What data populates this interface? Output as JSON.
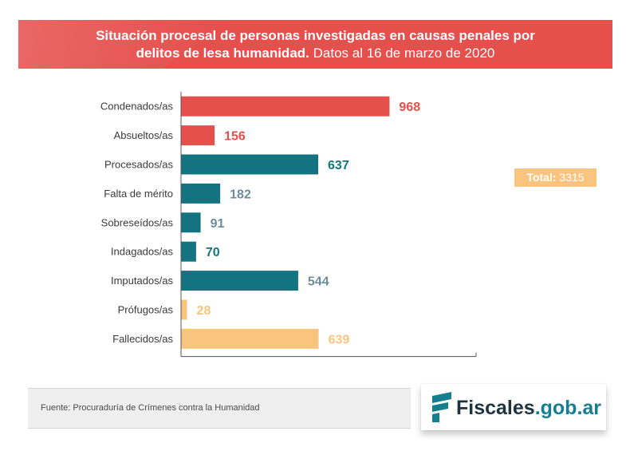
{
  "header": {
    "title_bold_1": "Situación procesal de personas investigadas en  causas penales por",
    "title_bold_2": "delitos de lesa humanidad.",
    "title_regular_2": " Datos al 16 de marzo de 2020"
  },
  "chart_data": {
    "type": "bar",
    "orientation": "horizontal",
    "categories": [
      "Condenados/as",
      "Absueltos/as",
      "Procesados/as",
      "Falta de mérito",
      "Sobreseídos/as",
      "Indagados/as",
      "Imputados/as",
      "Prófugos/as",
      "Fallecidos/as"
    ],
    "values": [
      968,
      156,
      637,
      182,
      91,
      70,
      544,
      28,
      639
    ],
    "bar_colors": [
      "#e54f4c",
      "#e54f4c",
      "#137380",
      "#137380",
      "#137380",
      "#137380",
      "#137380",
      "#f9c47e",
      "#f9c47e"
    ],
    "label_colors": [
      "#e54f4c",
      "#e54f4c",
      "#137380",
      "#6b8d9c",
      "#6b8d9c",
      "#137380",
      "#6b8d9c",
      "#f9c47e",
      "#f9c47e"
    ],
    "xlim": [
      0,
      1370
    ],
    "grid": false,
    "legend": "none"
  },
  "total": {
    "label": "Total:",
    "value": " 3315",
    "color": "#f9c47e"
  },
  "source": {
    "text": "Fuente: Procuraduría de Crímenes contra la Humanidad"
  },
  "logo": {
    "name_dark": "Fiscales",
    "name_teal": ".gob.ar",
    "icon": "fiscales-logo-icon",
    "colors": {
      "dark": "#1c3340",
      "teal": "#157f90"
    }
  }
}
